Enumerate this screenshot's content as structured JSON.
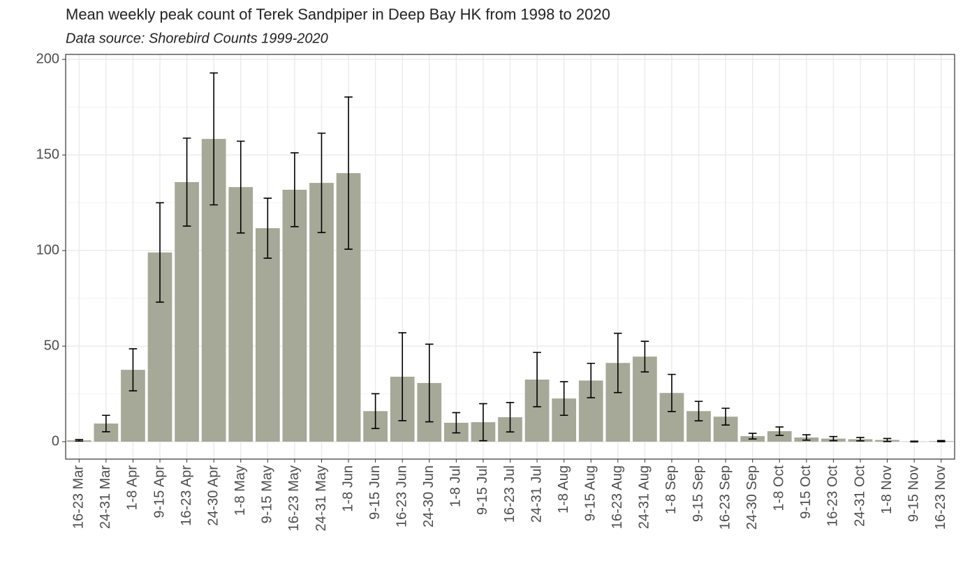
{
  "chart_data": {
    "type": "bar",
    "title": "Mean weekly peak count of Terek Sandpiper in Deep Bay HK from 1998 to 2020",
    "subtitle": "Data source: Shorebird Counts 1999-2020",
    "categories": [
      "16-23 Mar",
      "24-31 Mar",
      "1-8 Apr",
      "9-15 Apr",
      "16-23 Apr",
      "24-30 Apr",
      "1-8 May",
      "9-15 May",
      "16-23 May",
      "24-31 May",
      "1-8 Jun",
      "9-15 Jun",
      "16-23 Jun",
      "24-30 Jun",
      "1-8 Jul",
      "9-15 Jul",
      "16-23 Jul",
      "24-31 Jul",
      "1-8 Aug",
      "9-15 Aug",
      "16-23 Aug",
      "24-31 Aug",
      "1-8 Sep",
      "9-15 Sep",
      "16-23 Sep",
      "24-30 Sep",
      "1-8 Oct",
      "9-15 Oct",
      "16-23 Oct",
      "24-31 Oct",
      "1-8 Nov",
      "9-15 Nov",
      "16-23 Nov"
    ],
    "values": [
      0.7,
      9.5,
      37.6,
      99,
      135.8,
      158.4,
      133.2,
      111.7,
      131.8,
      135.4,
      140.5,
      16,
      34,
      30.7,
      9.9,
      10.2,
      12.8,
      32.5,
      22.6,
      32,
      41.2,
      44.5,
      25.5,
      16,
      13.1,
      2.9,
      5.5,
      2.2,
      1.6,
      1.3,
      0.9,
      0.1,
      0.3
    ],
    "errors": [
      0.4,
      4.3,
      11,
      26,
      23,
      34.5,
      24,
      15.7,
      19.3,
      26,
      39.8,
      9.1,
      23,
      20.3,
      5.3,
      9.7,
      7.7,
      14.2,
      8.8,
      9,
      15.5,
      8,
      9.7,
      5.1,
      4.4,
      1.5,
      2.2,
      1.4,
      1.1,
      0.9,
      0.8,
      0.2,
      0.3
    ],
    "color": "#a6a898",
    "ylim": [
      -9.1,
      202.6
    ],
    "yticks": [
      0,
      50,
      100,
      150,
      200
    ],
    "grid": true
  }
}
